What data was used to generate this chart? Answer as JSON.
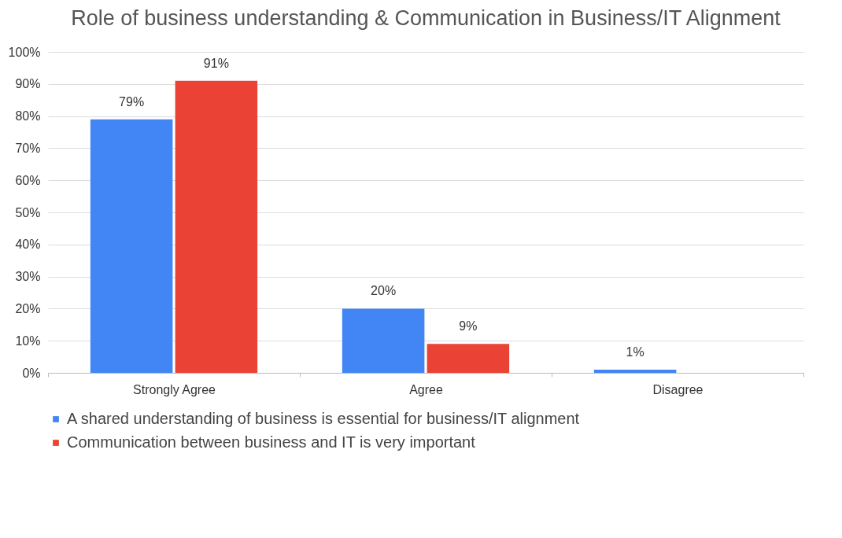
{
  "chart_data": {
    "type": "bar",
    "title": "Role of business understanding & Communication in Business/IT Alignment",
    "categories": [
      "Strongly Agree",
      "Agree",
      "Disagree"
    ],
    "series": [
      {
        "name": "A shared understanding of business is essential for business/IT alignment",
        "color": "#4285f4",
        "values": [
          79,
          20,
          1
        ],
        "value_labels": [
          "79%",
          "20%",
          "1%"
        ]
      },
      {
        "name": "Communication between business and IT is very important",
        "color": "#ea4335",
        "values": [
          91,
          9,
          0
        ],
        "value_labels": [
          "91%",
          "9%",
          null
        ]
      }
    ],
    "ylim": [
      0,
      100
    ],
    "yticks": [
      {
        "value": 0,
        "label": "0%"
      },
      {
        "value": 10,
        "label": "10%"
      },
      {
        "value": 20,
        "label": "20%"
      },
      {
        "value": 30,
        "label": "30%"
      },
      {
        "value": 40,
        "label": "40%"
      },
      {
        "value": 50,
        "label": "50%"
      },
      {
        "value": 60,
        "label": "60%"
      },
      {
        "value": 70,
        "label": "70%"
      },
      {
        "value": 80,
        "label": "80%"
      },
      {
        "value": 90,
        "label": "90%"
      },
      {
        "value": 100,
        "label": "100%"
      }
    ],
    "grid": "y",
    "legend": "bottom"
  }
}
